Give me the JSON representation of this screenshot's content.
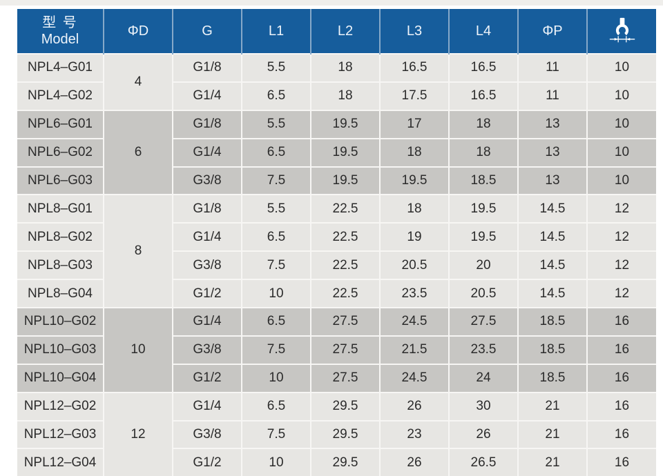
{
  "page": {
    "background_color": "#ffffff",
    "top_strip_color": "#efeeeb"
  },
  "table": {
    "header": {
      "model_zh": "型 号",
      "model_en": "Model",
      "columns": [
        "ΦD",
        "G",
        "L1",
        "L2",
        "L3",
        "L4",
        "ΦP"
      ],
      "wrench_icon": "open-end-wrench-width-across-flats-icon"
    },
    "colors": {
      "header_bg": "#165d9c",
      "header_text": "#eef4fa",
      "header_divider": "#86a9c9",
      "row_light": "#e7e6e3",
      "row_dark": "#c7c6c3",
      "grid_line": "#f7f6f4",
      "cell_text": "#2b2b2b"
    },
    "column_keys": [
      "g",
      "l1",
      "l2",
      "l3",
      "l4",
      "phi_p",
      "wrench"
    ],
    "groups": [
      {
        "phi_d": "4",
        "shade": "light",
        "rows": [
          {
            "model": "NPL4–G01",
            "g": "G1/8",
            "l1": "5.5",
            "l2": "18",
            "l3": "16.5",
            "l4": "16.5",
            "phi_p": "11",
            "wrench": "10"
          },
          {
            "model": "NPL4–G02",
            "g": "G1/4",
            "l1": "6.5",
            "l2": "18",
            "l3": "17.5",
            "l4": "16.5",
            "phi_p": "11",
            "wrench": "10"
          }
        ]
      },
      {
        "phi_d": "6",
        "shade": "dark",
        "rows": [
          {
            "model": "NPL6–G01",
            "g": "G1/8",
            "l1": "5.5",
            "l2": "19.5",
            "l3": "17",
            "l4": "18",
            "phi_p": "13",
            "wrench": "10"
          },
          {
            "model": "NPL6–G02",
            "g": "G1/4",
            "l1": "6.5",
            "l2": "19.5",
            "l3": "18",
            "l4": "18",
            "phi_p": "13",
            "wrench": "10"
          },
          {
            "model": "NPL6–G03",
            "g": "G3/8",
            "l1": "7.5",
            "l2": "19.5",
            "l3": "19.5",
            "l4": "18.5",
            "phi_p": "13",
            "wrench": "10"
          }
        ]
      },
      {
        "phi_d": "8",
        "shade": "light",
        "rows": [
          {
            "model": "NPL8–G01",
            "g": "G1/8",
            "l1": "5.5",
            "l2": "22.5",
            "l3": "18",
            "l4": "19.5",
            "phi_p": "14.5",
            "wrench": "12"
          },
          {
            "model": "NPL8–G02",
            "g": "G1/4",
            "l1": "6.5",
            "l2": "22.5",
            "l3": "19",
            "l4": "19.5",
            "phi_p": "14.5",
            "wrench": "12"
          },
          {
            "model": "NPL8–G03",
            "g": "G3/8",
            "l1": "7.5",
            "l2": "22.5",
            "l3": "20.5",
            "l4": "20",
            "phi_p": "14.5",
            "wrench": "12"
          },
          {
            "model": "NPL8–G04",
            "g": "G1/2",
            "l1": "10",
            "l2": "22.5",
            "l3": "23.5",
            "l4": "20.5",
            "phi_p": "14.5",
            "wrench": "12"
          }
        ]
      },
      {
        "phi_d": "10",
        "shade": "dark",
        "rows": [
          {
            "model": "NPL10–G02",
            "g": "G1/4",
            "l1": "6.5",
            "l2": "27.5",
            "l3": "24.5",
            "l4": "27.5",
            "phi_p": "18.5",
            "wrench": "16"
          },
          {
            "model": "NPL10–G03",
            "g": "G3/8",
            "l1": "7.5",
            "l2": "27.5",
            "l3": "21.5",
            "l4": "23.5",
            "phi_p": "18.5",
            "wrench": "16"
          },
          {
            "model": "NPL10–G04",
            "g": "G1/2",
            "l1": "10",
            "l2": "27.5",
            "l3": "24.5",
            "l4": "24",
            "phi_p": "18.5",
            "wrench": "16"
          }
        ]
      },
      {
        "phi_d": "12",
        "shade": "light",
        "rows": [
          {
            "model": "NPL12–G02",
            "g": "G1/4",
            "l1": "6.5",
            "l2": "29.5",
            "l3": "26",
            "l4": "30",
            "phi_p": "21",
            "wrench": "16"
          },
          {
            "model": "NPL12–G03",
            "g": "G3/8",
            "l1": "7.5",
            "l2": "29.5",
            "l3": "23",
            "l4": "26",
            "phi_p": "21",
            "wrench": "16"
          },
          {
            "model": "NPL12–G04",
            "g": "G1/2",
            "l1": "10",
            "l2": "29.5",
            "l3": "26",
            "l4": "26.5",
            "phi_p": "21",
            "wrench": "16"
          }
        ]
      }
    ]
  }
}
